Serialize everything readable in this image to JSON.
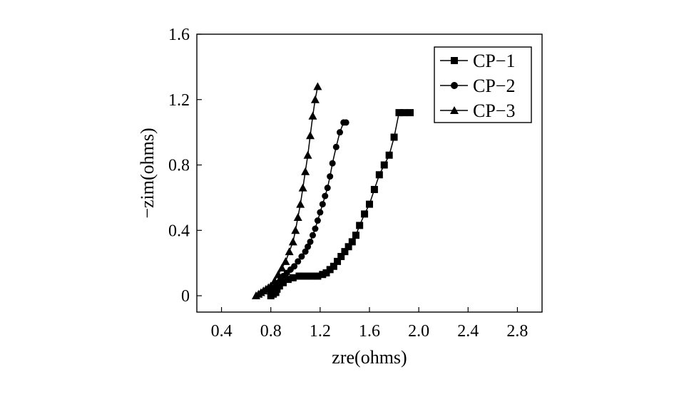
{
  "chart_data": {
    "type": "line",
    "xlabel": "zre(ohms)",
    "ylabel": "−zim(ohms)",
    "xlim": [
      0.2,
      3.0
    ],
    "ylim": [
      -0.1,
      1.6
    ],
    "x_ticks": [
      0.4,
      0.8,
      1.2,
      1.6,
      2.0,
      2.4,
      2.8
    ],
    "x_tick_labels": [
      "0.4",
      "0.8",
      "1.2",
      "1.6",
      "2.0",
      "2.4",
      "2.8"
    ],
    "y_ticks": [
      0,
      0.4,
      0.8,
      1.2,
      1.6
    ],
    "y_tick_labels": [
      "0",
      "0.4",
      "0.8",
      "1.2",
      "1.6"
    ],
    "grid": false,
    "legend_position": "top-right",
    "series": [
      {
        "name": "CP−1",
        "marker": "square",
        "x": [
          0.8,
          0.82,
          0.84,
          0.85,
          0.87,
          0.9,
          0.94,
          0.98,
          1.03,
          1.08,
          1.13,
          1.18,
          1.22,
          1.25,
          1.28,
          1.31,
          1.34,
          1.37,
          1.4,
          1.43,
          1.46,
          1.49,
          1.52,
          1.56,
          1.6,
          1.64,
          1.68,
          1.72,
          1.76,
          1.8,
          1.84,
          1.88,
          1.93
        ],
        "y": [
          0.0,
          0.01,
          0.02,
          0.04,
          0.06,
          0.08,
          0.1,
          0.11,
          0.12,
          0.12,
          0.12,
          0.12,
          0.13,
          0.14,
          0.16,
          0.18,
          0.21,
          0.24,
          0.27,
          0.3,
          0.33,
          0.37,
          0.43,
          0.5,
          0.56,
          0.65,
          0.74,
          0.8,
          0.86,
          0.97,
          1.12,
          1.12,
          1.12
        ]
      },
      {
        "name": "CP−2",
        "marker": "circle",
        "x": [
          0.8,
          0.81,
          0.82,
          0.84,
          0.86,
          0.88,
          0.9,
          0.93,
          0.96,
          0.99,
          1.02,
          1.05,
          1.08,
          1.1,
          1.12,
          1.14,
          1.16,
          1.18,
          1.2,
          1.22,
          1.24,
          1.26,
          1.28,
          1.3,
          1.33,
          1.36,
          1.39,
          1.41
        ],
        "y": [
          0.0,
          0.02,
          0.04,
          0.06,
          0.08,
          0.1,
          0.12,
          0.14,
          0.16,
          0.18,
          0.21,
          0.24,
          0.27,
          0.3,
          0.33,
          0.37,
          0.41,
          0.46,
          0.51,
          0.56,
          0.61,
          0.66,
          0.73,
          0.81,
          0.91,
          1.0,
          1.06,
          1.06
        ]
      },
      {
        "name": "CP−3",
        "marker": "triangle",
        "x": [
          0.68,
          0.7,
          0.72,
          0.74,
          0.76,
          0.78,
          0.8,
          0.83,
          0.86,
          0.89,
          0.92,
          0.95,
          0.98,
          1.0,
          1.02,
          1.04,
          1.06,
          1.08,
          1.1,
          1.12,
          1.14,
          1.16,
          1.18
        ],
        "y": [
          0.0,
          0.01,
          0.02,
          0.03,
          0.04,
          0.05,
          0.06,
          0.09,
          0.13,
          0.17,
          0.21,
          0.27,
          0.33,
          0.4,
          0.48,
          0.56,
          0.66,
          0.76,
          0.86,
          0.98,
          1.1,
          1.2,
          1.28
        ]
      }
    ]
  }
}
